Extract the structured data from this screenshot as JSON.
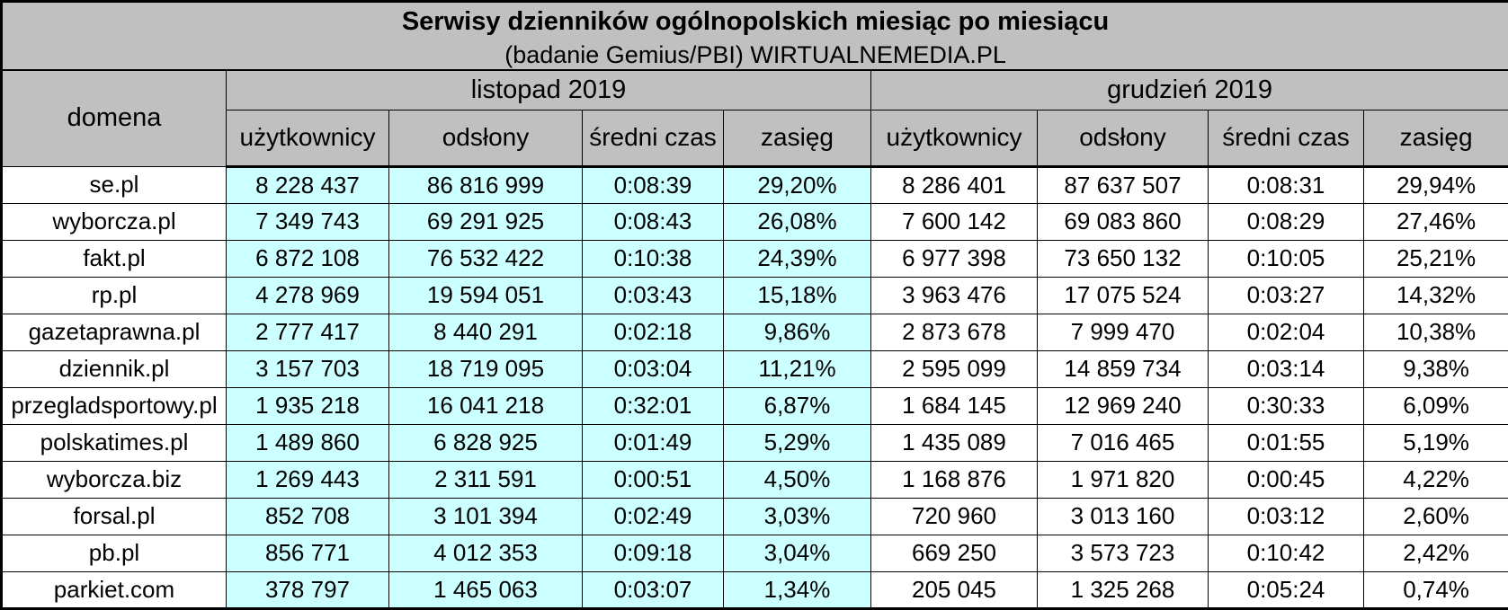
{
  "colors": {
    "header_bg": "#C0C0C0",
    "november_highlight_bg": "#CCFFFF",
    "row_bg": "#FFFFFF",
    "border": "#000000",
    "text": "#000000"
  },
  "chart_data": {
    "type": "table",
    "title": "Serwisy dzienników ogólnopolskich miesiąc po miesiącu",
    "subtitle": "(badanie Gemius/PBI) WIRTUALNEMEDIA.PL",
    "column_groups": [
      "listopad 2019",
      "grudzień 2019"
    ],
    "columns": [
      "domena",
      "użytkownicy",
      "odsłony",
      "średni czas",
      "zasięg",
      "użytkownicy",
      "odsłony",
      "średni czas",
      "zasięg"
    ],
    "rows": [
      [
        "se.pl",
        "8 228 437",
        "86 816 999",
        "0:08:39",
        "29,20%",
        "8 286 401",
        "87 637 507",
        "0:08:31",
        "29,94%"
      ],
      [
        "wyborcza.pl",
        "7 349 743",
        "69 291 925",
        "0:08:43",
        "26,08%",
        "7 600 142",
        "69 083 860",
        "0:08:29",
        "27,46%"
      ],
      [
        "fakt.pl",
        "6 872 108",
        "76 532 422",
        "0:10:38",
        "24,39%",
        "6 977 398",
        "73 650 132",
        "0:10:05",
        "25,21%"
      ],
      [
        "rp.pl",
        "4 278 969",
        "19 594 051",
        "0:03:43",
        "15,18%",
        "3 963 476",
        "17 075 524",
        "0:03:27",
        "14,32%"
      ],
      [
        "gazetaprawna.pl",
        "2 777 417",
        "8 440 291",
        "0:02:18",
        "9,86%",
        "2 873 678",
        "7 999 470",
        "0:02:04",
        "10,38%"
      ],
      [
        "dziennik.pl",
        "3 157 703",
        "18 719 095",
        "0:03:04",
        "11,21%",
        "2 595 099",
        "14 859 734",
        "0:03:14",
        "9,38%"
      ],
      [
        "przegladsportowy.pl",
        "1 935 218",
        "16 041 218",
        "0:32:01",
        "6,87%",
        "1 684 145",
        "12 969 240",
        "0:30:33",
        "6,09%"
      ],
      [
        "polskatimes.pl",
        "1 489 860",
        "6 828 925",
        "0:01:49",
        "5,29%",
        "1 435 089",
        "7 016 465",
        "0:01:55",
        "5,19%"
      ],
      [
        "wyborcza.biz",
        "1 269 443",
        "2 311 591",
        "0:00:51",
        "4,50%",
        "1 168 876",
        "1 971 820",
        "0:00:45",
        "4,22%"
      ],
      [
        "forsal.pl",
        "852 708",
        "3 101 394",
        "0:02:49",
        "3,03%",
        "720 960",
        "3 013 160",
        "0:03:12",
        "2,60%"
      ],
      [
        "pb.pl",
        "856 771",
        "4 012 353",
        "0:09:18",
        "3,04%",
        "669 250",
        "3 573 723",
        "0:10:42",
        "2,42%"
      ],
      [
        "parkiet.com",
        "378 797",
        "1 465 063",
        "0:03:07",
        "1,34%",
        "205 045",
        "1 325 268",
        "0:05:24",
        "0,74%"
      ]
    ]
  }
}
